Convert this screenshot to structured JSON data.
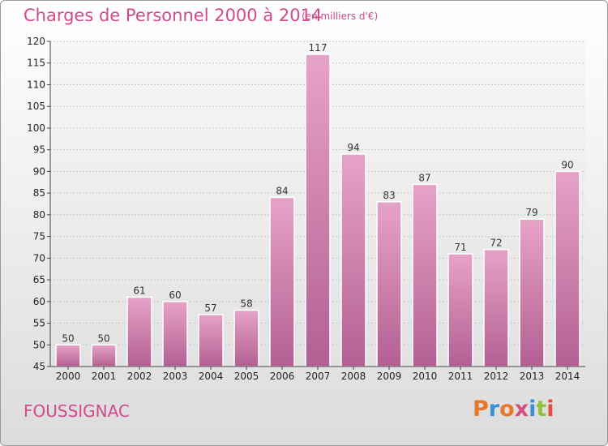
{
  "header": {
    "title": "Charges de Personnel 2000 à 2014",
    "unit": "(en milliers d'€)"
  },
  "footer": {
    "commune": "FOUSSIGNAC",
    "logo": "Proxiti",
    "logo_colors": [
      "#e8772e",
      "#3c8fd6",
      "#e8772e",
      "#d64f7e",
      "#3c8fd6",
      "#8fc13e",
      "#e84b3c"
    ]
  },
  "colors": {
    "bar_top": "#e6a3c8",
    "bar_bottom": "#b36092",
    "accent": "#d04a8c"
  },
  "chart_data": {
    "type": "bar",
    "title": "Charges de Personnel 2000 à 2014",
    "categories": [
      "2000",
      "2001",
      "2002",
      "2003",
      "2004",
      "2005",
      "2006",
      "2007",
      "2008",
      "2009",
      "2010",
      "2011",
      "2012",
      "2013",
      "2014"
    ],
    "values": [
      50,
      50,
      61,
      60,
      57,
      58,
      84,
      117,
      94,
      83,
      87,
      71,
      72,
      79,
      90
    ],
    "ylim": [
      45,
      120
    ],
    "yticks": [
      45,
      50,
      55,
      60,
      65,
      70,
      75,
      80,
      85,
      90,
      95,
      100,
      105,
      110,
      115,
      120
    ],
    "grid": true,
    "legend": "none"
  }
}
